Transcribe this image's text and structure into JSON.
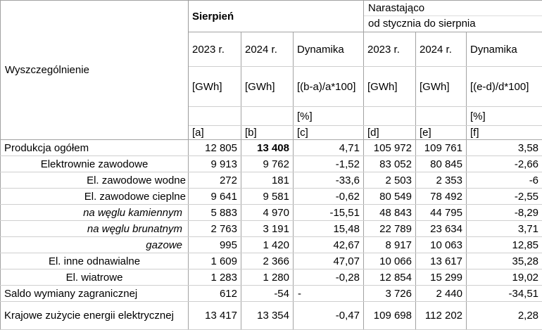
{
  "table": {
    "spec_header": "Wyszczególnienie",
    "sections": {
      "august": {
        "title": "Sierpień",
        "y2023": "2023 r.",
        "y2024": "2024 r.",
        "dynamika": "Dynamika",
        "gwh_a": "[GWh]",
        "gwh_b": "[GWh]",
        "formula": "[(b-a)/a*100]",
        "percent": "[%]",
        "ref_a": "[a]",
        "ref_b": "[b]",
        "ref_c": "[c]"
      },
      "cumulative": {
        "title_line1": "Narastająco",
        "title_line2": "od stycznia do sierpnia",
        "y2023": "2023 r.",
        "y2024": "2024 r.",
        "dynamika": "Dynamika",
        "gwh_d": "[GWh]",
        "gwh_e": "[GWh]",
        "formula": "[(e-d)/d*100]",
        "percent": "[%]",
        "ref_d": "[d]",
        "ref_e": "[e]",
        "ref_f": "[f]"
      }
    },
    "rows": [
      {
        "label": "Produkcja ogółem",
        "a": "12 805",
        "b": "13 408",
        "c": "4,71",
        "d": "105 972",
        "e": "109 761",
        "f": "3,58"
      },
      {
        "label": "Elektrownie zawodowe",
        "a": "9 913",
        "b": "9 762",
        "c": "-1,52",
        "d": "83 052",
        "e": "80 845",
        "f": "-2,66"
      },
      {
        "label": "El. zawodowe wodne",
        "a": "272",
        "b": "181",
        "c": "-33,6",
        "d": "2 503",
        "e": "2 353",
        "f": "-6"
      },
      {
        "label": "El. zawodowe cieplne",
        "a": "9 641",
        "b": "9 581",
        "c": "-0,62",
        "d": "80 549",
        "e": "78 492",
        "f": "-2,55"
      },
      {
        "label": "na węglu kamiennym",
        "a": "5 883",
        "b": "4 970",
        "c": "-15,51",
        "d": "48 843",
        "e": "44 795",
        "f": "-8,29"
      },
      {
        "label": "na węglu brunatnym",
        "a": "2 763",
        "b": "3 191",
        "c": "15,48",
        "d": "22 789",
        "e": "23 634",
        "f": "3,71"
      },
      {
        "label": "gazowe",
        "a": "995",
        "b": "1 420",
        "c": "42,67",
        "d": "8 917",
        "e": "10 063",
        "f": "12,85"
      },
      {
        "label": "El. inne odnawialne",
        "a": "1 609",
        "b": "2 366",
        "c": "47,07",
        "d": "10 066",
        "e": "13 617",
        "f": "35,28"
      },
      {
        "label": "El. wiatrowe",
        "a": "1 283",
        "b": "1 280",
        "c": "-0,28",
        "d": "12 854",
        "e": "15 299",
        "f": "19,02"
      },
      {
        "label": "Saldo wymiany zagranicznej",
        "a": "612",
        "b": "-54",
        "c": "-",
        "d": "3 726",
        "e": "2 440",
        "f": "-34,51"
      },
      {
        "label": "Krajowe zużycie energii elektrycznej",
        "a": "13 417",
        "b": "13 354",
        "c": "-0,47",
        "d": "109 698",
        "e": "112 202",
        "f": "2,28"
      }
    ]
  }
}
